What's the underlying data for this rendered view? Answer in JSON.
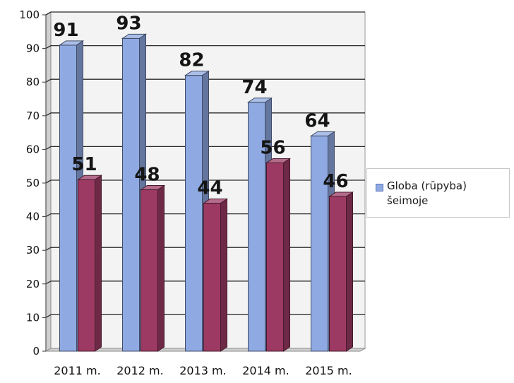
{
  "chart_data": {
    "type": "bar",
    "categories": [
      "2011 m.",
      "2012 m.",
      "2013 m.",
      "2014 m.",
      "2015 m."
    ],
    "series": [
      {
        "name": "Globa (rūpyba) šeimoje",
        "values": [
          91,
          93,
          82,
          74,
          64
        ],
        "color": "#8fa9e2"
      },
      {
        "name": "",
        "values": [
          51,
          48,
          44,
          56,
          46
        ],
        "color": "#9c3a63"
      }
    ],
    "ylim": [
      0,
      100
    ],
    "yticks": [
      0,
      10,
      20,
      30,
      40,
      50,
      60,
      70,
      80,
      90,
      100
    ],
    "grid": true,
    "legend": "right",
    "style": "3d-column"
  }
}
